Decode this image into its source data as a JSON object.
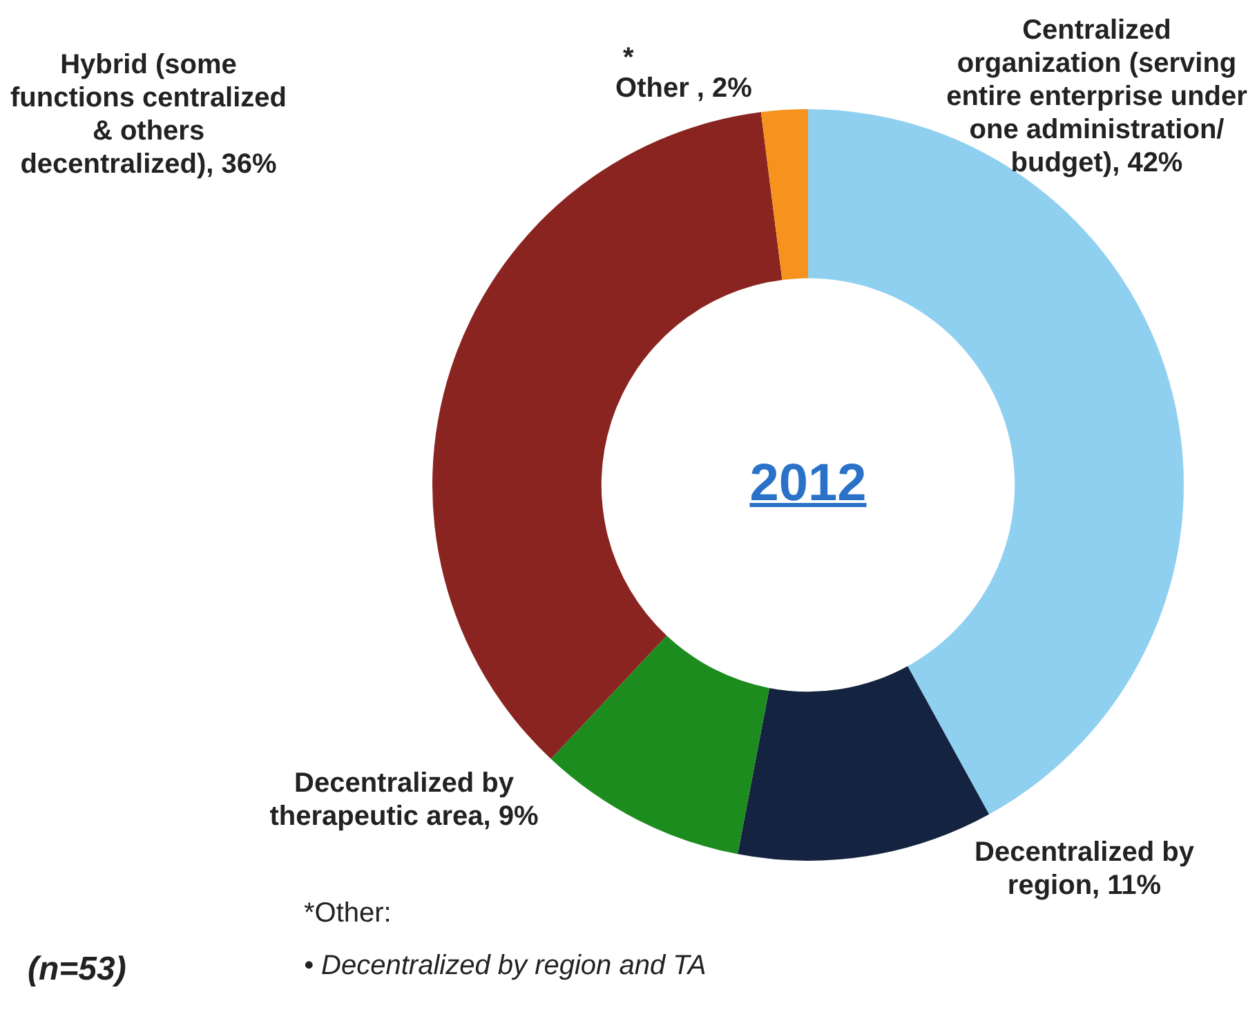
{
  "chart_data": {
    "type": "donut",
    "title": "2012",
    "categories": [
      "Centralized organization (serving entire enterprise under one administration/ budget)",
      "Decentralized by region",
      "Decentralized by therapeutic area",
      "Hybrid (some functions centralized & others decentralized)",
      "Other "
    ],
    "values": [
      42,
      11,
      9,
      36,
      2
    ],
    "value_labels": [
      "42%",
      "11%",
      "9%",
      "36%",
      "2%"
    ],
    "colors": [
      "#8fd0f0",
      "#14233f",
      "#1c8c1f",
      "#8a2420",
      "#f5931e"
    ],
    "annotations": [
      "*",
      "(n=53)",
      "*Other:",
      "• Decentralized by region and TA"
    ],
    "legend": false
  }
}
